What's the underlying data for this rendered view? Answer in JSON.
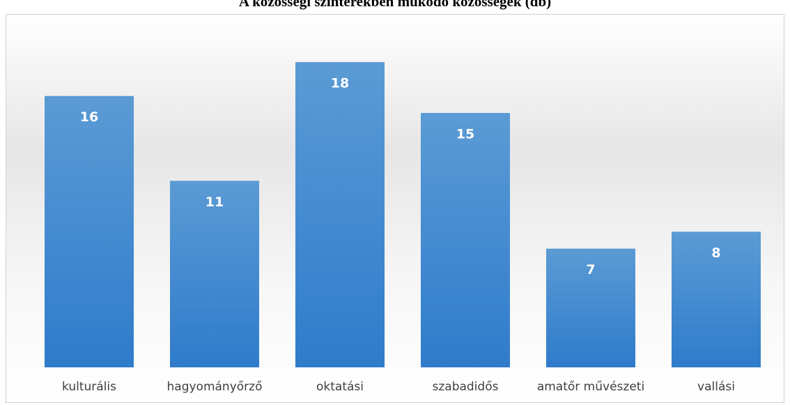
{
  "chart_data": {
    "type": "bar",
    "title": "A közösségi színterekben működő közösségek (db)",
    "categories": [
      "kulturális",
      "hagyományőrző",
      "oktatási",
      "szabadidős",
      "amatőr művészeti",
      "vallási"
    ],
    "values": [
      16,
      11,
      18,
      15,
      7,
      8
    ],
    "color": "#4a8fd6",
    "ylim": [
      0,
      20
    ],
    "grid": false
  }
}
